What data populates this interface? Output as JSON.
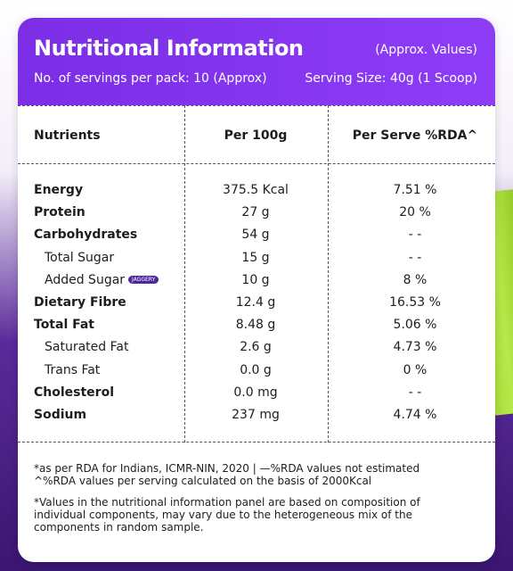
{
  "header": {
    "title": "Nutritional Information",
    "note": "(Approx. Values)",
    "servings": "No. of servings per pack: 10 (Approx)",
    "serving_size": "Serving Size: 40g (1 Scoop)"
  },
  "table": {
    "columns": [
      "Nutrients",
      "Per 100g",
      "Per Serve %RDA^"
    ],
    "rows": [
      [
        "Energy",
        "375.5 Kcal",
        "7.51 %"
      ],
      [
        "Protein",
        "27 g",
        "20 %"
      ],
      [
        "Carbohydrates",
        "54 g",
        "- -"
      ],
      [
        "Total Sugar",
        "15 g",
        "- -"
      ],
      [
        "Added Sugar",
        "10 g",
        "8 %"
      ],
      [
        "Dietary Fibre",
        "12.4 g",
        "16.53 %"
      ],
      [
        "Total Fat",
        "8.48 g",
        "5.06 %"
      ],
      [
        "Saturated Fat",
        "2.6 g",
        "4.73 %"
      ],
      [
        "Trans Fat",
        "0.0 g",
        "0 %"
      ],
      [
        "Cholesterol",
        "0.0 mg",
        "- -"
      ],
      [
        "Sodium",
        "237 mg",
        "4.74 %"
      ]
    ],
    "badge": "JAGGERY"
  },
  "footnotes": [
    [
      "*as per RDA for Indians, ICMR-NIN, 2020 | —%RDA values not estimated",
      "^%RDA values per serving calculated on the basis of 2000Kcal"
    ],
    [
      "*Values in the nutritional information panel are based on composition of",
      "individual components, may vary due to the heterogeneous mix of the",
      "components in random sample."
    ]
  ]
}
